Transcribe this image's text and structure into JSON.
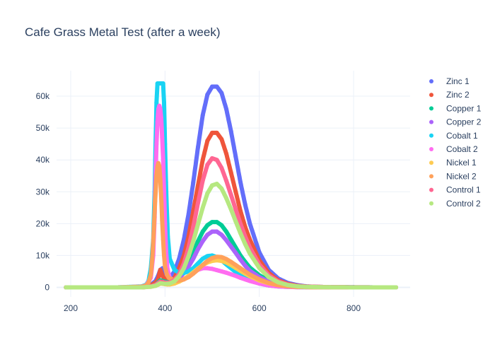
{
  "chart_data": {
    "type": "scatter",
    "title": "Cafe Grass Metal Test (after a week)",
    "xlabel": "",
    "ylabel": "",
    "xlim": [
      170,
      920
    ],
    "ylim": [
      -3000,
      68000
    ],
    "x_ticks": [
      200,
      400,
      600,
      800
    ],
    "x_tick_labels": [
      "200",
      "400",
      "600",
      "800"
    ],
    "y_ticks": [
      0,
      10000,
      20000,
      30000,
      40000,
      50000,
      60000
    ],
    "y_tick_labels": [
      "0",
      "10k",
      "20k",
      "30k",
      "40k",
      "50k",
      "60k"
    ],
    "grid": true,
    "legend_position": "right",
    "series": [
      {
        "name": "Zinc 1",
        "color": "#636efa",
        "x": [
          190,
          300,
          350,
          360,
          370,
          380,
          385,
          390,
          395,
          400,
          405,
          410,
          420,
          430,
          440,
          450,
          460,
          470,
          480,
          490,
          500,
          510,
          520,
          530,
          540,
          550,
          560,
          570,
          580,
          600,
          620,
          640,
          660,
          680,
          700,
          720,
          750,
          800,
          850,
          890
        ],
        "y": [
          0,
          0,
          0,
          300,
          800,
          2000,
          3500,
          5500,
          6000,
          4500,
          3000,
          2800,
          5000,
          9000,
          15000,
          23000,
          33000,
          44000,
          54000,
          60500,
          63000,
          63000,
          61000,
          56000,
          49000,
          41000,
          33000,
          26000,
          20000,
          11000,
          5500,
          2800,
          1400,
          700,
          300,
          150,
          80,
          30,
          0,
          0
        ]
      },
      {
        "name": "Zinc 2",
        "color": "#ef553b",
        "x": [
          190,
          300,
          350,
          370,
          380,
          385,
          390,
          395,
          400,
          405,
          410,
          420,
          430,
          440,
          450,
          460,
          470,
          480,
          490,
          500,
          510,
          520,
          530,
          540,
          550,
          560,
          570,
          580,
          600,
          620,
          640,
          660,
          680,
          700,
          750,
          800,
          850,
          890
        ],
        "y": [
          0,
          0,
          0,
          600,
          1500,
          2500,
          5500,
          3500,
          2500,
          2000,
          1800,
          3000,
          6000,
          10000,
          16000,
          24000,
          32000,
          40000,
          46000,
          48500,
          48500,
          46500,
          42000,
          36000,
          30000,
          24000,
          19000,
          15000,
          8500,
          4500,
          2200,
          1100,
          500,
          250,
          60,
          20,
          0,
          0
        ]
      },
      {
        "name": "Copper 1",
        "color": "#00cc96",
        "x": [
          190,
          300,
          350,
          370,
          380,
          385,
          390,
          395,
          400,
          410,
          420,
          430,
          440,
          450,
          460,
          470,
          480,
          490,
          500,
          510,
          520,
          530,
          540,
          550,
          560,
          570,
          580,
          600,
          620,
          640,
          660,
          680,
          700,
          750,
          800,
          850,
          890
        ],
        "y": [
          0,
          0,
          0,
          300,
          800,
          1500,
          2200,
          2000,
          1800,
          1500,
          2000,
          3500,
          5500,
          8000,
          11000,
          14500,
          17500,
          19500,
          20500,
          20500,
          19500,
          17500,
          15000,
          12500,
          10000,
          8000,
          6200,
          3800,
          2200,
          1100,
          550,
          250,
          120,
          30,
          0,
          0,
          0
        ]
      },
      {
        "name": "Copper 2",
        "color": "#ab63fa",
        "x": [
          190,
          300,
          350,
          370,
          380,
          385,
          390,
          395,
          400,
          410,
          420,
          430,
          440,
          450,
          460,
          470,
          480,
          490,
          500,
          510,
          520,
          530,
          540,
          550,
          560,
          570,
          580,
          600,
          620,
          640,
          660,
          680,
          700,
          750,
          800,
          850,
          890
        ],
        "y": [
          0,
          0,
          0,
          300,
          700,
          1200,
          1800,
          1600,
          1400,
          1200,
          1600,
          2800,
          4500,
          6500,
          9000,
          12000,
          14500,
          16500,
          17500,
          17500,
          16500,
          14800,
          12800,
          10800,
          8700,
          6800,
          5200,
          3200,
          1800,
          900,
          450,
          200,
          100,
          30,
          0,
          0,
          0
        ]
      },
      {
        "name": "Cobalt 1",
        "color": "#19d3f3",
        "x": [
          190,
          300,
          350,
          360,
          365,
          370,
          375,
          378,
          380,
          382,
          384,
          386,
          388,
          390,
          392,
          394,
          396,
          398,
          400,
          402,
          404,
          406,
          410,
          420,
          430,
          440,
          450,
          460,
          470,
          480,
          490,
          500,
          510,
          520,
          530,
          540,
          550,
          560,
          570,
          580,
          600,
          620,
          640,
          660,
          680,
          700,
          750,
          800,
          850,
          890
        ],
        "y": [
          0,
          0,
          300,
          800,
          2000,
          6000,
          15000,
          30000,
          45000,
          58000,
          64000,
          64000,
          64000,
          64000,
          64000,
          64000,
          64000,
          58000,
          45000,
          33000,
          24000,
          16000,
          9000,
          5500,
          4500,
          4500,
          5000,
          6000,
          7500,
          9000,
          9800,
          10000,
          9500,
          8500,
          7200,
          6000,
          4800,
          3800,
          2900,
          2200,
          1200,
          600,
          300,
          150,
          80,
          40,
          10,
          0,
          0,
          0
        ]
      },
      {
        "name": "Cobalt 2",
        "color": "#ff6cf0",
        "x": [
          190,
          300,
          350,
          360,
          370,
          375,
          378,
          380,
          382,
          384,
          386,
          388,
          390,
          392,
          394,
          396,
          398,
          400,
          402,
          405,
          410,
          420,
          430,
          440,
          450,
          460,
          470,
          480,
          490,
          500,
          510,
          520,
          530,
          540,
          550,
          560,
          580,
          600,
          620,
          640,
          660,
          680,
          700,
          750,
          800,
          850,
          890
        ],
        "y": [
          0,
          0,
          200,
          600,
          3000,
          10000,
          22000,
          35000,
          45000,
          52000,
          56000,
          57000,
          56000,
          53000,
          47000,
          40000,
          30000,
          20000,
          12000,
          6000,
          3000,
          2000,
          2000,
          2500,
          3500,
          4500,
          5500,
          6000,
          6000,
          5800,
          5400,
          5000,
          4600,
          4100,
          3600,
          3000,
          2000,
          1200,
          600,
          300,
          150,
          70,
          30,
          10,
          0,
          0,
          0
        ]
      },
      {
        "name": "Nickel 1",
        "color": "#fecb52",
        "x": [
          190,
          300,
          350,
          370,
          380,
          385,
          390,
          395,
          400,
          405,
          410,
          420,
          430,
          440,
          450,
          460,
          470,
          480,
          490,
          500,
          510,
          520,
          530,
          540,
          550,
          560,
          570,
          580,
          600,
          620,
          640,
          660,
          680,
          700,
          750,
          800,
          850,
          890
        ],
        "y": [
          0,
          0,
          0,
          200,
          500,
          800,
          1200,
          1100,
          1000,
          900,
          900,
          1200,
          1800,
          2600,
          3600,
          4700,
          5900,
          7000,
          7800,
          8300,
          8500,
          8300,
          7800,
          7000,
          6100,
          5200,
          4300,
          3500,
          2200,
          1300,
          700,
          350,
          170,
          80,
          20,
          0,
          0,
          0
        ]
      },
      {
        "name": "Nickel 2",
        "color": "#ffa15a",
        "x": [
          190,
          300,
          350,
          360,
          365,
          370,
          373,
          376,
          379,
          382,
          384,
          386,
          388,
          390,
          392,
          394,
          396,
          398,
          400,
          404,
          408,
          415,
          425,
          440,
          450,
          460,
          470,
          480,
          490,
          500,
          510,
          520,
          530,
          540,
          550,
          560,
          570,
          580,
          600,
          620,
          640,
          660,
          680,
          700,
          750,
          800,
          850,
          890
        ],
        "y": [
          0,
          0,
          200,
          600,
          1500,
          4000,
          9000,
          17000,
          27000,
          35000,
          38000,
          39000,
          38000,
          34000,
          28000,
          21000,
          15000,
          10000,
          6500,
          4000,
          3000,
          2500,
          2000,
          2500,
          3200,
          4300,
          5600,
          7000,
          8300,
          9200,
          9600,
          9500,
          8900,
          8000,
          7000,
          6000,
          5000,
          4000,
          2500,
          1400,
          700,
          350,
          170,
          80,
          20,
          0,
          0,
          0
        ]
      },
      {
        "name": "Control 1",
        "color": "#ff6692",
        "x": [
          190,
          300,
          350,
          370,
          380,
          385,
          390,
          395,
          400,
          410,
          420,
          430,
          440,
          450,
          460,
          470,
          480,
          490,
          500,
          510,
          520,
          530,
          540,
          550,
          560,
          570,
          580,
          600,
          620,
          640,
          660,
          680,
          700,
          750,
          800,
          850,
          890
        ],
        "y": [
          0,
          0,
          0,
          300,
          800,
          1300,
          1800,
          1700,
          1500,
          1500,
          2300,
          4200,
          7500,
          12500,
          19000,
          26500,
          33500,
          38500,
          40500,
          40000,
          37500,
          33500,
          29000,
          24500,
          20000,
          16000,
          12500,
          7200,
          3800,
          1900,
          900,
          400,
          180,
          40,
          0,
          0,
          0
        ]
      },
      {
        "name": "Control 2",
        "color": "#b6e880",
        "x": [
          190,
          300,
          350,
          370,
          380,
          385,
          390,
          395,
          400,
          410,
          420,
          430,
          440,
          450,
          460,
          470,
          480,
          490,
          500,
          510,
          520,
          530,
          540,
          550,
          560,
          570,
          580,
          600,
          620,
          640,
          660,
          680,
          700,
          750,
          800,
          850,
          890
        ],
        "y": [
          0,
          0,
          0,
          200,
          500,
          900,
          1300,
          1200,
          1100,
          1200,
          1900,
          3500,
          6000,
          9800,
          14500,
          19800,
          25000,
          29500,
          32000,
          32500,
          31000,
          28000,
          24500,
          20700,
          17000,
          13600,
          10600,
          6100,
          3200,
          1600,
          750,
          350,
          150,
          30,
          0,
          0,
          0
        ]
      }
    ]
  }
}
